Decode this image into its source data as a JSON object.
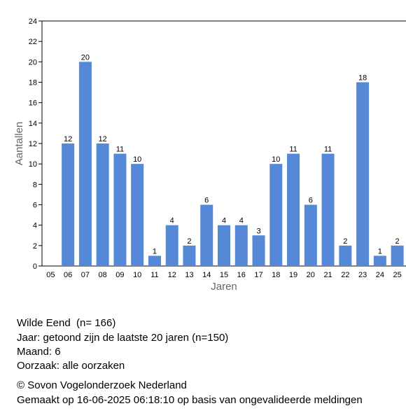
{
  "chart_data": {
    "type": "bar",
    "categories": [
      "05",
      "06",
      "07",
      "08",
      "09",
      "10",
      "11",
      "12",
      "13",
      "14",
      "15",
      "16",
      "17",
      "18",
      "19",
      "20",
      "21",
      "22",
      "23",
      "24",
      "25"
    ],
    "values": [
      null,
      12,
      20,
      12,
      11,
      10,
      1,
      4,
      2,
      6,
      4,
      4,
      3,
      10,
      11,
      6,
      11,
      2,
      18,
      1,
      2
    ],
    "color": "#5588d6",
    "ylim": [
      0,
      24
    ],
    "yticks": [
      0,
      2,
      4,
      6,
      8,
      10,
      12,
      14,
      16,
      18,
      20,
      22,
      24
    ],
    "y_label": "Aantallen",
    "x_label": "Jaren"
  },
  "info": {
    "lines": [
      "Wilde Eend  (n= 166)",
      "Jaar: getoond zijn de laatste 20 jaren (n=150)",
      "Maand: 6",
      "Oorzaak: alle oorzaken"
    ],
    "credits": [
      "© Sovon Vogelonderzoek Nederland",
      "Gemaakt op 16-06-2025 06:18:10 op basis van ongevalideerde meldingen"
    ]
  }
}
